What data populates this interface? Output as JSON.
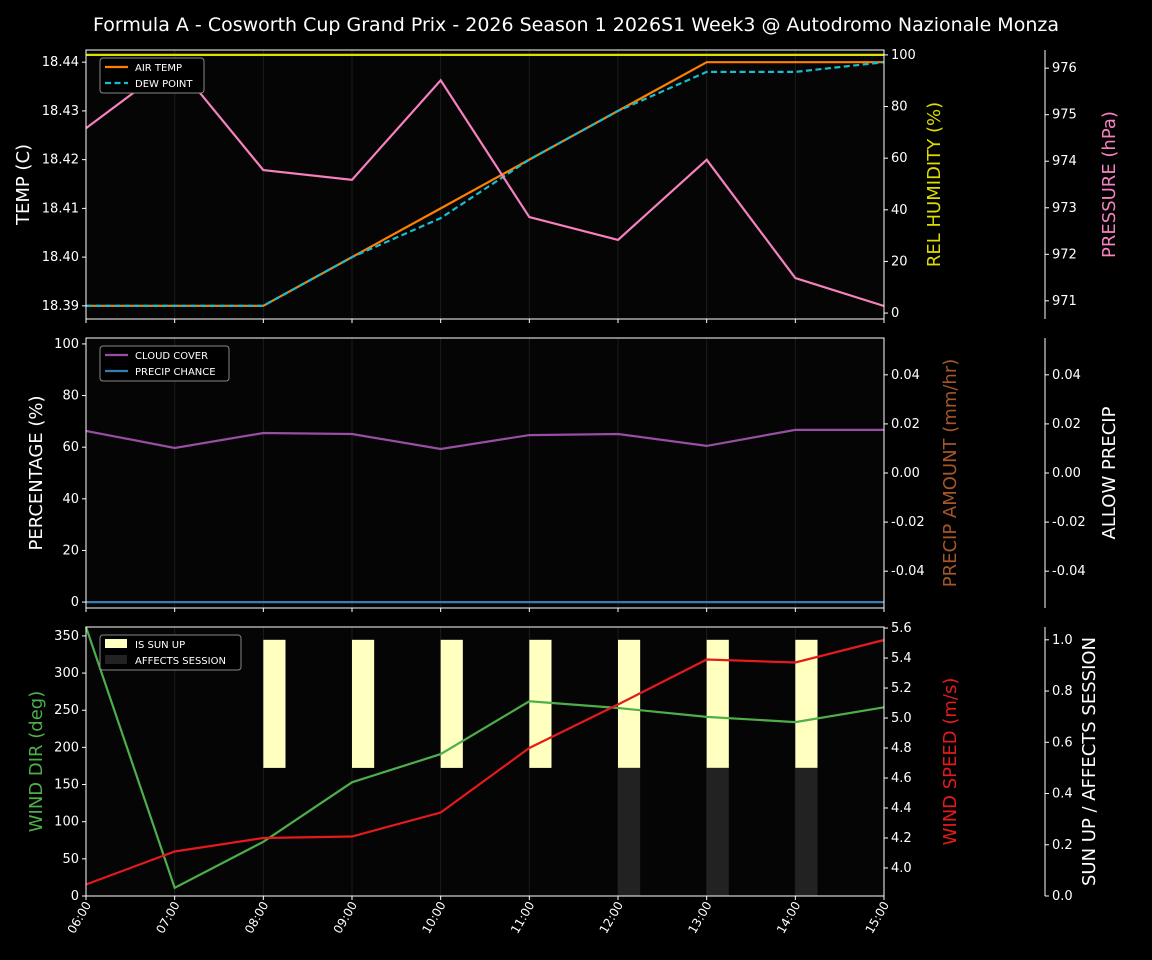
{
  "title": "Formula A - Cosworth Cup Grand Prix - 2026 Season 1 2026S1 Week3 @ Autodromo Nazionale Monza",
  "chart_data": [
    {
      "type": "line",
      "x": [
        "06:00",
        "07:00",
        "08:00",
        "09:00",
        "10:00",
        "11:00",
        "12:00",
        "13:00",
        "14:00",
        "15:00"
      ],
      "ylabel": "TEMP (C)",
      "ylim": [
        18.3873,
        18.4425
      ],
      "yticks": [
        "18.39",
        "18.40",
        "18.41",
        "18.42",
        "18.43",
        "18.44"
      ],
      "y2label": "REL HUMIDITY (%)",
      "y2lim": [
        -2.3,
        101.9
      ],
      "y2ticks": [
        "0",
        "20",
        "40",
        "60",
        "80",
        "100"
      ],
      "y3label": "PRESSURE (hPa)",
      "y3lim": [
        970.61,
        976.39
      ],
      "y3ticks": [
        "971",
        "972",
        "973",
        "974",
        "975",
        "976"
      ],
      "legend": "top-left",
      "series": [
        {
          "name": "AIR TEMP",
          "axis": "y",
          "color": "#ff7f00",
          "dash": false,
          "values": [
            18.39,
            18.39,
            18.39,
            18.4,
            18.41,
            18.42,
            18.43,
            18.44,
            18.44,
            18.44
          ]
        },
        {
          "name": "DEW POINT",
          "axis": "y",
          "color": "#17becf",
          "dash": true,
          "values": [
            18.39,
            18.39,
            18.39,
            18.4,
            18.408,
            18.42,
            18.43,
            18.438,
            18.438,
            18.44
          ]
        },
        {
          "axis": "y2",
          "color": "#dddd00",
          "dash": false,
          "values": [
            100,
            100,
            100,
            100,
            100,
            100,
            100,
            100,
            100,
            100
          ]
        },
        {
          "axis": "y3",
          "color": "#f781bf",
          "dash": false,
          "values": [
            974.71,
            976.13,
            973.81,
            973.6,
            975.74,
            972.8,
            972.31,
            974.03,
            971.49,
            970.89
          ]
        }
      ]
    },
    {
      "type": "line",
      "x": [
        "06:00",
        "07:00",
        "08:00",
        "09:00",
        "10:00",
        "11:00",
        "12:00",
        "13:00",
        "14:00",
        "15:00"
      ],
      "ylabel": "PERCENTAGE (%)",
      "ylim": [
        -2.3,
        102.3
      ],
      "yticks": [
        "0",
        "20",
        "40",
        "60",
        "80",
        "100"
      ],
      "y2label": "PRECIP AMOUNT (mm/hr)",
      "y2lim": [
        -0.055,
        0.055
      ],
      "y2ticks": [
        "-0.04",
        "-0.02",
        "0.00",
        "0.02",
        "0.04"
      ],
      "y3label": "ALLOW PRECIP",
      "y3lim": [
        -0.055,
        0.055
      ],
      "y3ticks": [
        "-0.04",
        "-0.02",
        "0.00",
        "0.02",
        "0.04"
      ],
      "legend": "top-left",
      "series": [
        {
          "name": "CLOUD COVER",
          "axis": "y",
          "color": "#984ea3",
          "dash": false,
          "values": [
            66.3,
            59.7,
            65.5,
            65.1,
            59.3,
            64.7,
            65.1,
            60.5,
            66.7,
            66.7
          ]
        },
        {
          "name": "PRECIP CHANCE",
          "axis": "y",
          "color": "#377eb8",
          "dash": false,
          "values": [
            0,
            0,
            0,
            0,
            0,
            0,
            0,
            0,
            0,
            0
          ]
        }
      ]
    },
    {
      "type": "line",
      "x": [
        "06:00",
        "07:00",
        "08:00",
        "09:00",
        "10:00",
        "11:00",
        "12:00",
        "13:00",
        "14:00",
        "15:00"
      ],
      "ylabel": "WIND DIR (deg)",
      "ylim": [
        0,
        362
      ],
      "yticks": [
        "0",
        "50",
        "100",
        "150",
        "200",
        "250",
        "300",
        "350"
      ],
      "y2label": "WIND SPEED (m/s)",
      "y2lim": [
        3.813,
        5.607
      ],
      "y2ticks": [
        "4.0",
        "4.2",
        "4.4",
        "4.6",
        "4.8",
        "5.0",
        "5.2",
        "5.4",
        "5.6"
      ],
      "y3label": "SUN UP / AFFECTS SESSION",
      "y3lim": [
        0,
        1.05
      ],
      "y3ticks": [
        "0.0",
        "0.2",
        "0.4",
        "0.6",
        "0.8",
        "1.0"
      ],
      "legend": "top-left",
      "bars": [
        {
          "name": "IS SUN UP",
          "color": "#ffffc0",
          "values": [
            0,
            0,
            1,
            1,
            1,
            1,
            1,
            1,
            1,
            0
          ]
        },
        {
          "name": "AFFECTS SESSION",
          "color": "#222222",
          "values": [
            0,
            0,
            0,
            0,
            0,
            0,
            1,
            1,
            1,
            0
          ]
        }
      ],
      "series": [
        {
          "axis": "y",
          "color": "#4daf4a",
          "dash": false,
          "values": [
            362,
            11,
            73,
            153,
            191,
            262,
            253,
            241,
            234,
            254
          ]
        },
        {
          "axis": "y2",
          "color": "#e41a1c",
          "dash": false,
          "values": [
            3.89,
            4.11,
            4.2,
            4.21,
            4.37,
            4.8,
            5.09,
            5.39,
            5.37,
            5.52
          ]
        }
      ]
    }
  ],
  "colors": {
    "ylabel1": "#ffffff",
    "humidity": "#dddd00",
    "pressure": "#f781bf",
    "precip": "#a65628",
    "allow": "#ffffff",
    "winddir": "#4daf4a",
    "windspeed": "#e41a1c",
    "sun": "#ffffff"
  }
}
